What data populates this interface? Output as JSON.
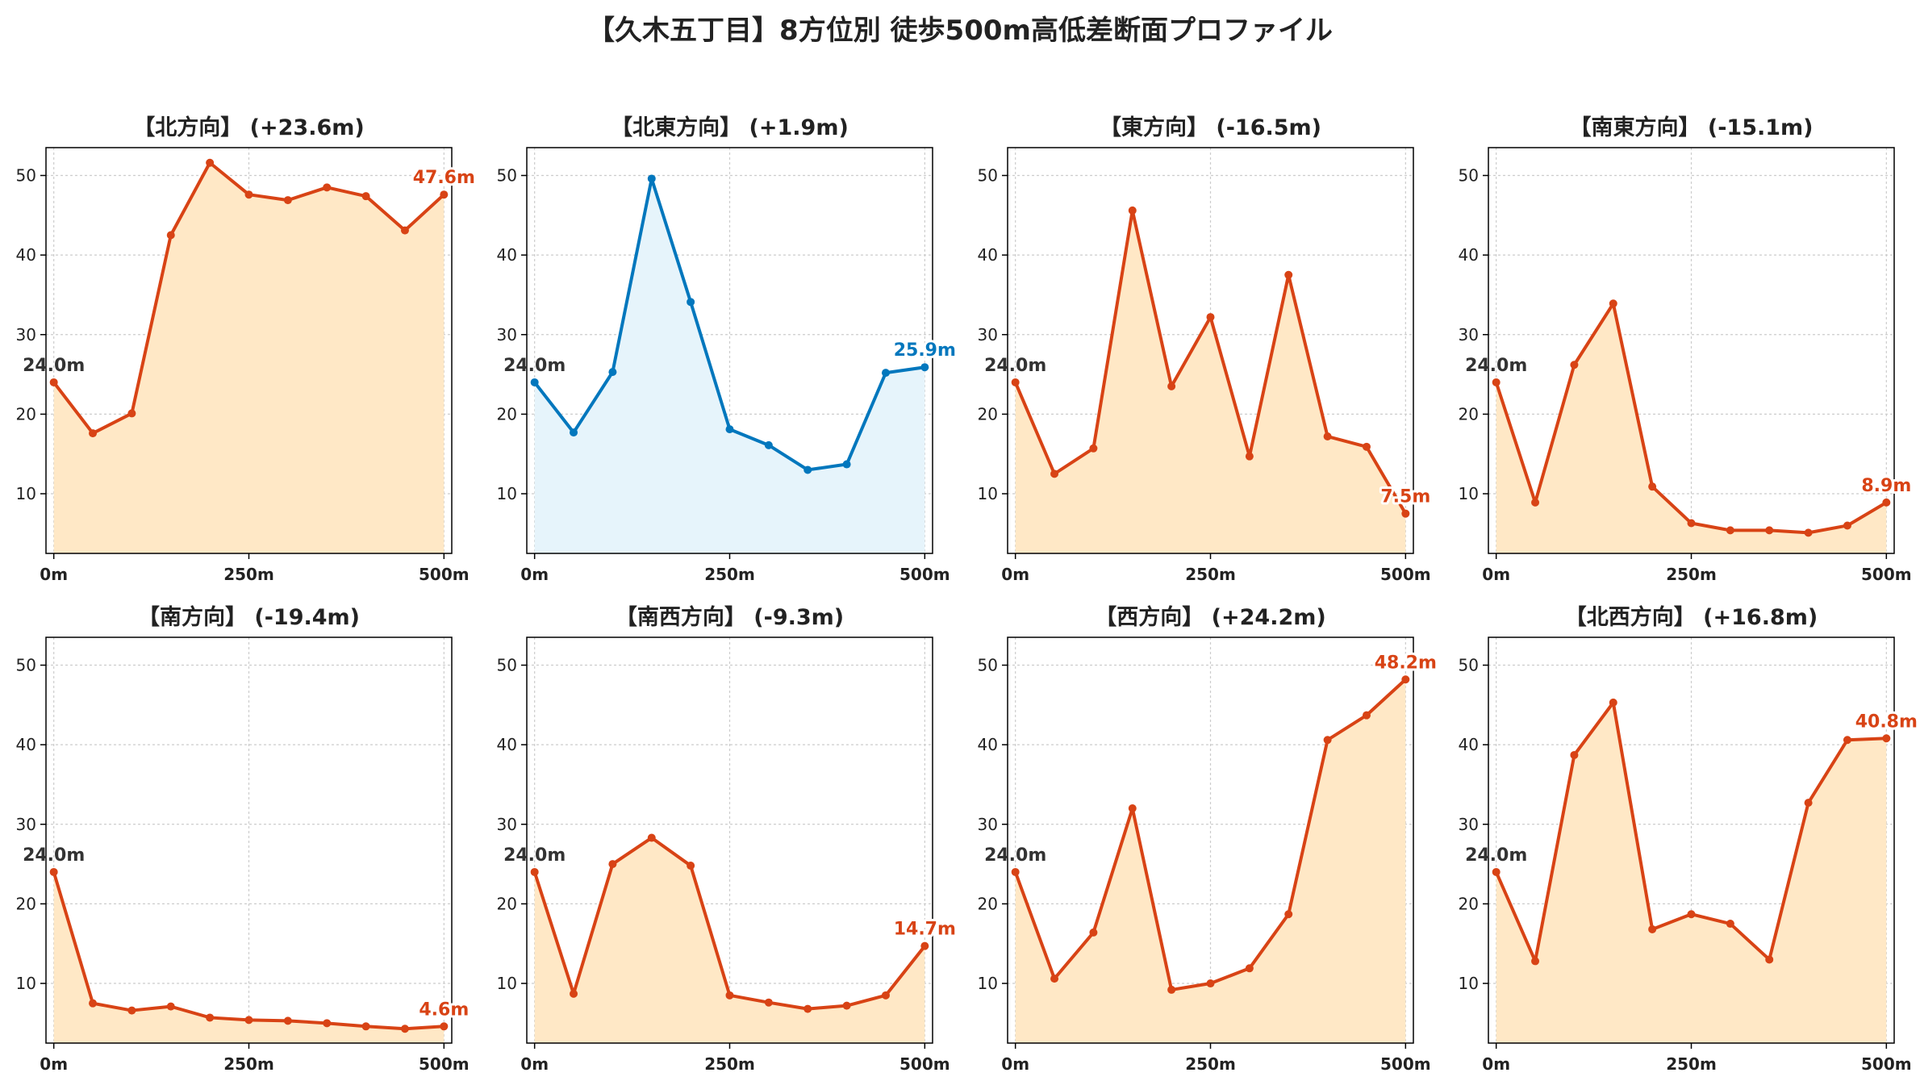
{
  "title": "【久木五丁目】8方位別 徒歩500m高低差断面プロファイル",
  "colors": {
    "down": "#d84315",
    "up": "#0277bd",
    "start": "#333333",
    "fill_down": "#ffe8c6",
    "fill_up": "#e6f4fb"
  },
  "chart_data": [
    {
      "type": "area",
      "title": "【北方向】 (+23.6m)",
      "color": "down",
      "x": [
        0,
        50,
        100,
        150,
        200,
        250,
        300,
        350,
        400,
        450,
        500
      ],
      "values": [
        24.0,
        17.6,
        20.1,
        42.5,
        51.6,
        47.6,
        46.9,
        48.5,
        47.4,
        43.1,
        47.6
      ],
      "start_label": "24.0m",
      "end_label": "47.6m"
    },
    {
      "type": "area",
      "title": "【北東方向】 (+1.9m)",
      "color": "up",
      "x": [
        0,
        50,
        100,
        150,
        200,
        250,
        300,
        350,
        400,
        450,
        500
      ],
      "values": [
        24.0,
        17.7,
        25.3,
        49.6,
        34.1,
        18.1,
        16.1,
        13.0,
        13.7,
        25.2,
        25.9
      ],
      "start_label": "24.0m",
      "end_label": "25.9m"
    },
    {
      "type": "area",
      "title": "【東方向】 (-16.5m)",
      "color": "down",
      "x": [
        0,
        50,
        100,
        150,
        200,
        250,
        300,
        350,
        400,
        450,
        500
      ],
      "values": [
        24.0,
        12.5,
        15.7,
        45.6,
        23.5,
        32.2,
        14.7,
        37.5,
        17.2,
        15.9,
        7.5
      ],
      "start_label": "24.0m",
      "end_label": "7.5m"
    },
    {
      "type": "area",
      "title": "【南東方向】 (-15.1m)",
      "color": "down",
      "x": [
        0,
        50,
        100,
        150,
        200,
        250,
        300,
        350,
        400,
        450,
        500
      ],
      "values": [
        24.0,
        8.9,
        26.2,
        33.9,
        10.9,
        6.3,
        5.4,
        5.4,
        5.1,
        6.0,
        8.9
      ],
      "start_label": "24.0m",
      "end_label": "8.9m"
    },
    {
      "type": "area",
      "title": "【南方向】 (-19.4m)",
      "color": "down",
      "x": [
        0,
        50,
        100,
        150,
        200,
        250,
        300,
        350,
        400,
        450,
        500
      ],
      "values": [
        24.0,
        7.5,
        6.6,
        7.1,
        5.7,
        5.4,
        5.3,
        5.0,
        4.6,
        4.3,
        4.6
      ],
      "start_label": "24.0m",
      "end_label": "4.6m"
    },
    {
      "type": "area",
      "title": "【南西方向】 (-9.3m)",
      "color": "down",
      "x": [
        0,
        50,
        100,
        150,
        200,
        250,
        300,
        350,
        400,
        450,
        500
      ],
      "values": [
        24.0,
        8.7,
        25.0,
        28.3,
        24.8,
        8.5,
        7.6,
        6.8,
        7.2,
        8.5,
        14.7
      ],
      "start_label": "24.0m",
      "end_label": "14.7m"
    },
    {
      "type": "area",
      "title": "【西方向】 (+24.2m)",
      "color": "down",
      "x": [
        0,
        50,
        100,
        150,
        200,
        250,
        300,
        350,
        400,
        450,
        500
      ],
      "values": [
        24.0,
        10.6,
        16.4,
        32.0,
        9.2,
        10.0,
        11.9,
        18.7,
        40.6,
        43.7,
        48.2
      ],
      "start_label": "24.0m",
      "end_label": "48.2m"
    },
    {
      "type": "area",
      "title": "【北西方向】 (+16.8m)",
      "color": "down",
      "x": [
        0,
        50,
        100,
        150,
        200,
        250,
        300,
        350,
        400,
        450,
        500
      ],
      "values": [
        24.0,
        12.8,
        38.7,
        45.3,
        16.8,
        18.7,
        17.5,
        13.0,
        32.7,
        40.6,
        40.8
      ],
      "start_label": "24.0m",
      "end_label": "40.8m"
    }
  ],
  "axes": {
    "xlim": [
      -10,
      510
    ],
    "ylim": [
      2.5,
      53.5
    ],
    "xticks": [
      0,
      250,
      500
    ],
    "xtick_labels": [
      "0m",
      "250m",
      "500m"
    ],
    "yticks": [
      10,
      20,
      30,
      40,
      50
    ],
    "grid": true
  }
}
